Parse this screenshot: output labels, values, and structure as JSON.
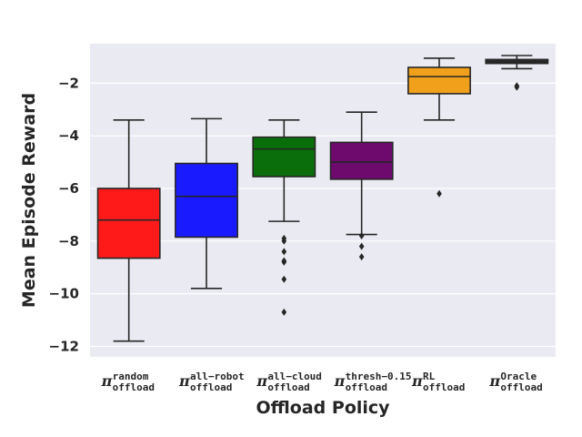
{
  "chart_data": {
    "type": "box",
    "xlabel": "Offload Policy",
    "ylabel": "Mean Episode Reward",
    "ylim": [
      -12.4,
      -0.5
    ],
    "yticks": [
      -2,
      -4,
      -6,
      -8,
      -10,
      -12
    ],
    "ytick_labels": [
      "−2",
      "−4",
      "−6",
      "−8",
      "−10",
      "−12"
    ],
    "background": "#eaeaf2",
    "grid": true,
    "categories": [
      {
        "symbol": "π",
        "sup": "random",
        "sub": "offload",
        "color": "#ff1a1a",
        "whisker_low": -11.8,
        "q1": -8.65,
        "median": -7.2,
        "q3": -6.0,
        "whisker_high": -3.4,
        "outliers": []
      },
      {
        "symbol": "π",
        "sup": "all−robot",
        "sub": "offload",
        "color": "#1a1aff",
        "whisker_low": -9.8,
        "q1": -7.85,
        "median": -6.3,
        "q3": -5.05,
        "whisker_high": -3.35,
        "outliers": []
      },
      {
        "symbol": "π",
        "sup": "all−cloud",
        "sub": "offload",
        "color": "#0a6e0a",
        "whisker_low": -7.25,
        "q1": -5.55,
        "median": -4.5,
        "q3": -4.05,
        "whisker_high": -3.4,
        "outliers": [
          -7.9,
          -8.0,
          -8.4,
          -8.75,
          -8.8,
          -9.45,
          -10.7
        ]
      },
      {
        "symbol": "π",
        "sup": "thresh−0.15",
        "sub": "offload",
        "color": "#6e0a6e",
        "whisker_low": -7.75,
        "q1": -5.65,
        "median": -5.0,
        "q3": -4.25,
        "whisker_high": -3.1,
        "outliers": [
          -7.8,
          -8.2,
          -8.6
        ]
      },
      {
        "symbol": "π",
        "sup": "RL",
        "sub": "offload",
        "color": "#f0a01a",
        "whisker_low": -3.4,
        "q1": -2.4,
        "median": -1.75,
        "q3": -1.4,
        "whisker_high": -1.05,
        "outliers": [
          -6.2
        ]
      },
      {
        "symbol": "π",
        "sup": "Oracle",
        "sub": "offload",
        "color": "#2a2a2a",
        "whisker_low": -1.45,
        "q1": -1.25,
        "median": -1.2,
        "q3": -1.1,
        "whisker_high": -0.95,
        "outliers": [
          -2.1,
          -2.15
        ]
      }
    ]
  }
}
